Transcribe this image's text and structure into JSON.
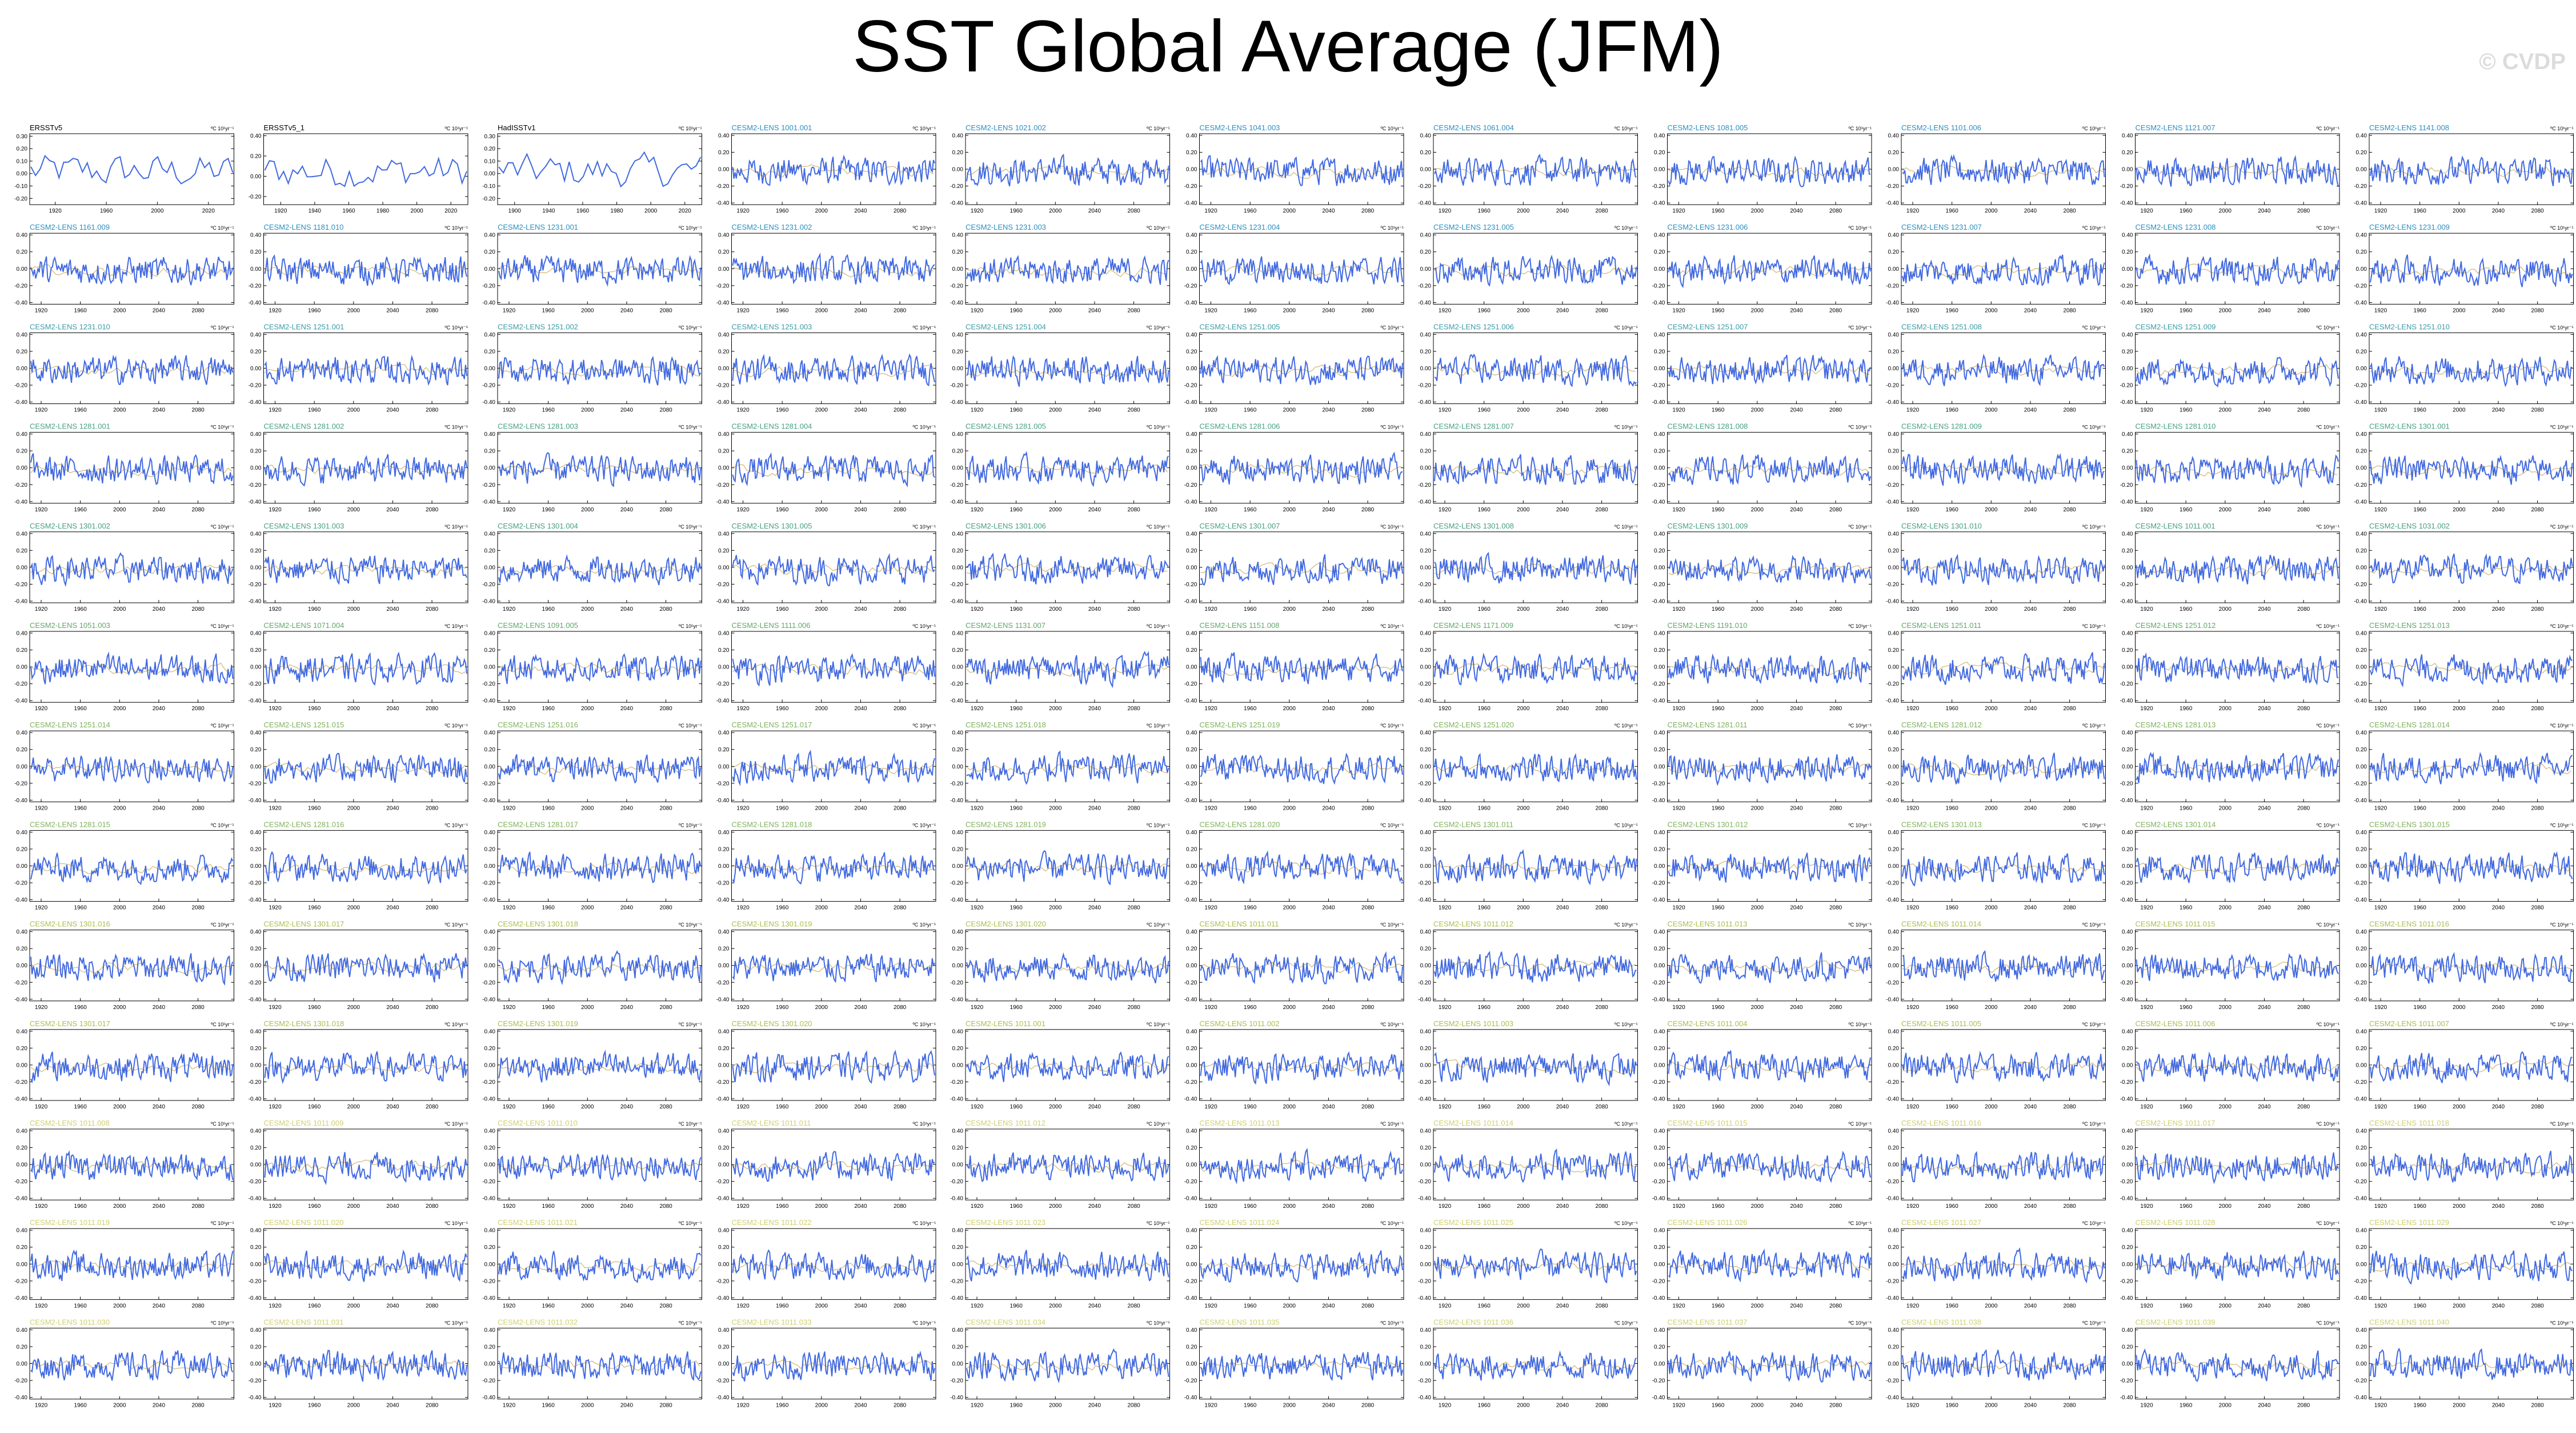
{
  "title": "SST Global Average (JFM)",
  "watermark": "© CVDP",
  "colors": {
    "observation_title": "#000000",
    "cesm2_1001_title": "#2a8fc0",
    "cesm2_1231_title": "#2a8fc0",
    "cesm2_1251_title": "#3a9ba8",
    "cesm2_1281_title": "#45a07e",
    "cesm2_1301_title": "#60a868",
    "cesm2_macro_title": "#7fb15a",
    "cesm2_smbb_title": "#a8c04e",
    "late_title": "#d1cf6e",
    "series": "#4169e1",
    "trend": "#c8a24a",
    "axis": "#000000"
  },
  "chart_data": {
    "type": "line",
    "layout": {
      "rows": 13,
      "cols": 11
    },
    "units_label": "ºC 10¹yr⁻¹",
    "observations": [
      {
        "name": "ERSSTv5",
        "x_ticks": [
          "1920",
          "1960",
          "2000",
          "2020"
        ],
        "y_ticks": [
          "0.30",
          "0.20",
          "0.10",
          "0.00",
          "-0.10",
          "-0.20"
        ],
        "ylim": [
          -0.25,
          0.32
        ]
      },
      {
        "name": "ERSSTv5_1",
        "x_ticks": [
          "1920",
          "1940",
          "1960",
          "1980",
          "2000",
          "2020"
        ],
        "y_ticks": [
          "0.40",
          "0.20",
          "0.00",
          "-0.20"
        ],
        "ylim": [
          -0.28,
          0.42
        ]
      },
      {
        "name": "HadISSTv1",
        "x_ticks": [
          "1900",
          "1940",
          "1960",
          "1980",
          "2000",
          "2020"
        ],
        "y_ticks": [
          "0.30",
          "0.20",
          "0.10",
          "0.00",
          "-0.10",
          "-0.20"
        ],
        "ylim": [
          -0.25,
          0.32
        ]
      }
    ],
    "ensemble": {
      "x_ticks": [
        "1920",
        "1960",
        "2000",
        "2040",
        "2080"
      ],
      "y_ticks": [
        "0.40",
        "0.20",
        "0.00",
        "-0.20",
        "-0.40"
      ],
      "ylim": [
        -0.42,
        0.42
      ],
      "xlim": [
        1850,
        2100
      ]
    },
    "panels": [
      "CESM2-LENS 1001.001",
      "CESM2-LENS 1021.002",
      "CESM2-LENS 1041.003",
      "CESM2-LENS 1061.004",
      "CESM2-LENS 1081.005",
      "CESM2-LENS 1101.006",
      "CESM2-LENS 1121.007",
      "CESM2-LENS 1141.008",
      "CESM2-LENS 1161.009",
      "CESM2-LENS 1181.010",
      "CESM2-LENS 1231.001",
      "CESM2-LENS 1231.002",
      "CESM2-LENS 1231.003",
      "CESM2-LENS 1231.004",
      "CESM2-LENS 1231.005",
      "CESM2-LENS 1231.006",
      "CESM2-LENS 1231.007",
      "CESM2-LENS 1231.008",
      "CESM2-LENS 1231.009",
      "CESM2-LENS 1231.010",
      "CESM2-LENS 1251.001",
      "CESM2-LENS 1251.002",
      "CESM2-LENS 1251.003",
      "CESM2-LENS 1251.004",
      "CESM2-LENS 1251.005",
      "CESM2-LENS 1251.006",
      "CESM2-LENS 1251.007",
      "CESM2-LENS 1251.008",
      "CESM2-LENS 1251.009",
      "CESM2-LENS 1251.010",
      "CESM2-LENS 1281.001",
      "CESM2-LENS 1281.002",
      "CESM2-LENS 1281.003",
      "CESM2-LENS 1281.004",
      "CESM2-LENS 1281.005",
      "CESM2-LENS 1281.006",
      "CESM2-LENS 1281.007",
      "CESM2-LENS 1281.008",
      "CESM2-LENS 1281.009",
      "CESM2-LENS 1281.010",
      "CESM2-LENS 1301.001",
      "CESM2-LENS 1301.002",
      "CESM2-LENS 1301.003",
      "CESM2-LENS 1301.004",
      "CESM2-LENS 1301.005",
      "CESM2-LENS 1301.006",
      "CESM2-LENS 1301.007",
      "CESM2-LENS 1301.008",
      "CESM2-LENS 1301.009",
      "CESM2-LENS 1301.010",
      "CESM2-LENS 1011.001",
      "CESM2-LENS 1031.002",
      "CESM2-LENS 1051.003",
      "CESM2-LENS 1071.004",
      "CESM2-LENS 1091.005",
      "CESM2-LENS 1111.006",
      "CESM2-LENS 1131.007",
      "CESM2-LENS 1151.008",
      "CESM2-LENS 1171.009",
      "CESM2-LENS 1191.010",
      "CESM2-LENS 1251.011",
      "CESM2-LENS 1251.012",
      "CESM2-LENS 1251.013",
      "CESM2-LENS 1251.014",
      "CESM2-LENS 1251.015",
      "CESM2-LENS 1251.016",
      "CESM2-LENS 1251.017",
      "CESM2-LENS 1251.018",
      "CESM2-LENS 1251.019",
      "CESM2-LENS 1251.020",
      "CESM2-LENS 1281.011",
      "CESM2-LENS 1281.012",
      "CESM2-LENS 1281.013",
      "CESM2-LENS 1281.014",
      "CESM2-LENS 1281.015",
      "CESM2-LENS 1281.016",
      "CESM2-LENS 1281.017",
      "CESM2-LENS 1281.018",
      "CESM2-LENS 1281.019",
      "CESM2-LENS 1281.020",
      "CESM2-LENS 1301.011",
      "CESM2-LENS 1301.012",
      "CESM2-LENS 1301.013",
      "CESM2-LENS 1301.014",
      "CESM2-LENS 1301.015",
      "CESM2-LENS 1301.016",
      "CESM2-LENS 1301.017",
      "CESM2-LENS 1301.018",
      "CESM2-LENS 1301.019",
      "CESM2-LENS 1301.020",
      "CESM2-LENS 1011.011",
      "CESM2-LENS 1011.012",
      "CESM2-LENS 1011.013",
      "CESM2-LENS 1011.014",
      "CESM2-LENS 1011.015",
      "CESM2-LENS 1011.016",
      "CESM2-LENS 1301.017",
      "CESM2-LENS 1301.018",
      "CESM2-LENS 1301.019",
      "CESM2-LENS 1301.020",
      "CESM2-LENS 1011.001",
      "CESM2-LENS 1011.002",
      "CESM2-LENS 1011.003",
      "CESM2-LENS 1011.004",
      "CESM2-LENS 1011.005",
      "CESM2-LENS 1011.006",
      "CESM2-LENS 1011.007",
      "CESM2-LENS 1011.008",
      "CESM2-LENS 1011.009",
      "CESM2-LENS 1011.010",
      "CESM2-LENS 1011.011",
      "CESM2-LENS 1011.012",
      "CESM2-LENS 1011.013",
      "CESM2-LENS 1011.014",
      "CESM2-LENS 1011.015",
      "CESM2-LENS 1011.016",
      "CESM2-LENS 1011.017",
      "CESM2-LENS 1011.018",
      "CESM2-LENS 1011.019",
      "CESM2-LENS 1011.020",
      "CESM2-LENS 1011.021",
      "CESM2-LENS 1011.022",
      "CESM2-LENS 1011.023",
      "CESM2-LENS 1011.024",
      "CESM2-LENS 1011.025",
      "CESM2-LENS 1011.026",
      "CESM2-LENS 1011.027",
      "CESM2-LENS 1011.028",
      "CESM2-LENS 1011.029",
      "CESM2-LENS 1011.030",
      "CESM2-LENS 1011.031",
      "CESM2-LENS 1011.032",
      "CESM2-LENS 1011.033",
      "CESM2-LENS 1011.034",
      "CESM2-LENS 1011.035",
      "CESM2-LENS 1011.036",
      "CESM2-LENS 1011.037",
      "CESM2-LENS 1011.038",
      "CESM2-LENS 1011.039",
      "CESM2-LENS 1011.040"
    ]
  }
}
